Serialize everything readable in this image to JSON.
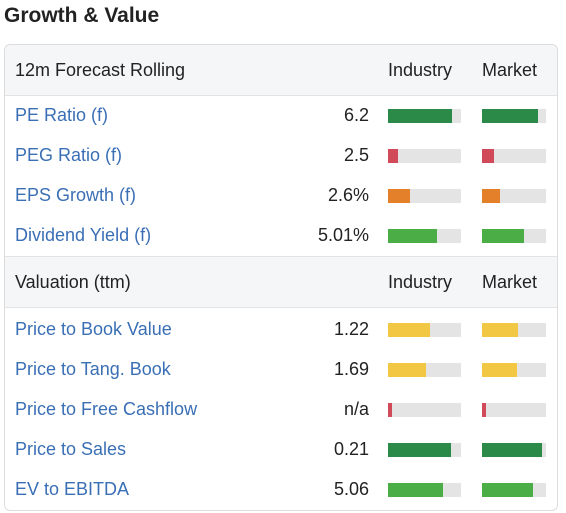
{
  "title": "Growth & Value",
  "sections": [
    {
      "title": "12m Forecast Rolling",
      "col_industry": "Industry",
      "col_market": "Market",
      "rows": [
        {
          "label": "PE Ratio (f)",
          "value": "6.2",
          "industry": 0.88,
          "market": 0.88,
          "color": "#2b8a47"
        },
        {
          "label": "PEG Ratio (f)",
          "value": "2.5",
          "industry": 0.14,
          "market": 0.18,
          "color": "#d04a5a"
        },
        {
          "label": "EPS Growth (f)",
          "value": "2.6%",
          "industry": 0.3,
          "market": 0.28,
          "color": "#e47f2a"
        },
        {
          "label": "Dividend Yield (f)",
          "value": "5.01%",
          "industry": 0.67,
          "market": 0.66,
          "color": "#4aad45"
        }
      ]
    },
    {
      "title": "Valuation (ttm)",
      "col_industry": "Industry",
      "col_market": "Market",
      "rows": [
        {
          "label": "Price to Book Value",
          "value": "1.22",
          "industry": 0.58,
          "market": 0.57,
          "color": "#f2c744"
        },
        {
          "label": "Price to Tang. Book",
          "value": "1.69",
          "industry": 0.52,
          "market": 0.54,
          "color": "#f2c744"
        },
        {
          "label": "Price to Free Cashflow",
          "value": "n/a",
          "industry": 0.05,
          "market": 0.06,
          "color": "#d04a5a"
        },
        {
          "label": "Price to Sales",
          "value": "0.21",
          "industry": 0.86,
          "market": 0.93,
          "color": "#2b8a47"
        },
        {
          "label": "EV to EBITDA",
          "value": "5.06",
          "industry": 0.75,
          "market": 0.8,
          "color": "#4aad45"
        }
      ]
    }
  ]
}
